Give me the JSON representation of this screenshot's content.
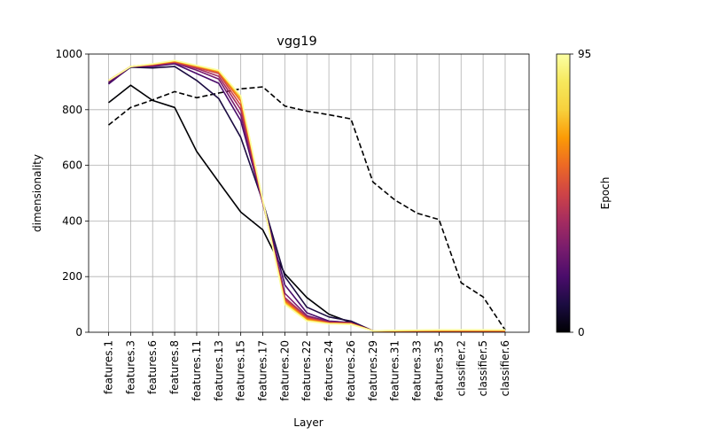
{
  "chart_data": {
    "type": "line",
    "title": "vgg19",
    "xlabel": "Layer",
    "ylabel": "dimensionality",
    "ylim": [
      0,
      1000
    ],
    "yticks": [
      0,
      200,
      400,
      600,
      800,
      1000
    ],
    "grid": true,
    "categories": [
      "features.1",
      "features.3",
      "features.6",
      "features.8",
      "features.11",
      "features.13",
      "features.15",
      "features.17",
      "features.20",
      "features.22",
      "features.24",
      "features.26",
      "features.29",
      "features.31",
      "features.33",
      "features.35",
      "classifier.2",
      "classifier.5",
      "classifier.6"
    ],
    "colorbar": {
      "label": "Epoch",
      "min": 0,
      "max": 95,
      "ticks": [
        "0",
        "95"
      ]
    },
    "series": [
      {
        "color": "#000000",
        "dash": true,
        "values": [
          745,
          808,
          835,
          865,
          843,
          860,
          875,
          882,
          813,
          795,
          782,
          767,
          540,
          475,
          428,
          405,
          178,
          127,
          8
        ]
      },
      {
        "color": "#000004",
        "dash": false,
        "values": [
          825,
          888,
          833,
          808,
          650,
          540,
          432,
          368,
          210,
          125,
          65,
          35,
          5,
          3,
          3,
          3,
          3,
          3,
          3
        ]
      },
      {
        "color": "#1b0c41",
        "dash": false,
        "values": [
          895,
          953,
          950,
          955,
          905,
          840,
          700,
          470,
          200,
          90,
          55,
          40,
          5,
          3,
          3,
          3,
          3,
          3,
          3
        ]
      },
      {
        "color": "#4a0c6b",
        "dash": false,
        "values": [
          892,
          955,
          955,
          965,
          930,
          895,
          760,
          465,
          170,
          70,
          40,
          35,
          5,
          3,
          3,
          3,
          3,
          3,
          3
        ]
      },
      {
        "color": "#781c6d",
        "dash": false,
        "values": [
          900,
          955,
          958,
          968,
          942,
          910,
          780,
          465,
          140,
          60,
          38,
          33,
          5,
          3,
          3,
          3,
          3,
          3,
          3
        ]
      },
      {
        "color": "#a52c60",
        "dash": false,
        "values": [
          905,
          955,
          960,
          970,
          948,
          920,
          800,
          470,
          125,
          55,
          35,
          33,
          5,
          3,
          3,
          3,
          3,
          3,
          3
        ]
      },
      {
        "color": "#cf4446",
        "dash": false,
        "values": [
          905,
          955,
          962,
          972,
          952,
          930,
          815,
          470,
          118,
          52,
          34,
          32,
          5,
          4,
          4,
          4,
          4,
          4,
          4
        ]
      },
      {
        "color": "#ed6925",
        "dash": false,
        "values": [
          905,
          955,
          963,
          973,
          955,
          935,
          830,
          472,
          112,
          48,
          33,
          31,
          5,
          4,
          5,
          5,
          5,
          5,
          5
        ]
      },
      {
        "color": "#fb9b06",
        "dash": false,
        "values": [
          905,
          955,
          963,
          975,
          957,
          938,
          840,
          473,
          108,
          45,
          32,
          30,
          5,
          5,
          6,
          6,
          7,
          7,
          7
        ]
      },
      {
        "color": "#f7d13d",
        "dash": false,
        "values": [
          905,
          955,
          964,
          976,
          958,
          940,
          845,
          474,
          104,
          42,
          31,
          29,
          5,
          6,
          7,
          8,
          8,
          8,
          8
        ]
      },
      {
        "color": "#fcffa4",
        "dash": false,
        "values": [
          905,
          955,
          965,
          977,
          960,
          942,
          850,
          475,
          100,
          40,
          30,
          28,
          5,
          7,
          8,
          9,
          9,
          9,
          9
        ]
      }
    ]
  }
}
